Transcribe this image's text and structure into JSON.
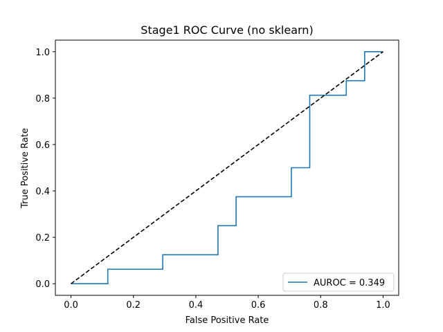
{
  "chart_data": {
    "type": "line",
    "title": "Stage1 ROC Curve (no sklearn)",
    "xlabel": "False Positive Rate",
    "ylabel": "True Positive Rate",
    "xlim": [
      -0.05,
      1.05
    ],
    "ylim": [
      -0.05,
      1.05
    ],
    "xticks": [
      0.0,
      0.2,
      0.4,
      0.6,
      0.8,
      1.0
    ],
    "yticks": [
      0.0,
      0.2,
      0.4,
      0.6,
      0.8,
      1.0
    ],
    "xtick_labels": [
      "0.0",
      "0.2",
      "0.4",
      "0.6",
      "0.8",
      "1.0"
    ],
    "ytick_labels": [
      "0.0",
      "0.2",
      "0.4",
      "0.6",
      "0.8",
      "1.0"
    ],
    "grid": false,
    "legend_position": "lower-right",
    "series": [
      {
        "name": "AUROC = 0.349",
        "color": "#1f77b4",
        "style": "solid",
        "x": [
          0.0,
          0.118,
          0.118,
          0.294,
          0.294,
          0.471,
          0.471,
          0.529,
          0.529,
          0.706,
          0.706,
          0.765,
          0.765,
          0.882,
          0.882,
          0.941,
          0.941,
          1.0
        ],
        "y": [
          0.0,
          0.0,
          0.0625,
          0.0625,
          0.125,
          0.125,
          0.25,
          0.25,
          0.375,
          0.375,
          0.5,
          0.5,
          0.8125,
          0.8125,
          0.875,
          0.875,
          1.0,
          1.0
        ]
      },
      {
        "color": "#000000",
        "style": "dashed",
        "x": [
          0.0,
          1.0
        ],
        "y": [
          0.0,
          1.0
        ]
      }
    ]
  }
}
